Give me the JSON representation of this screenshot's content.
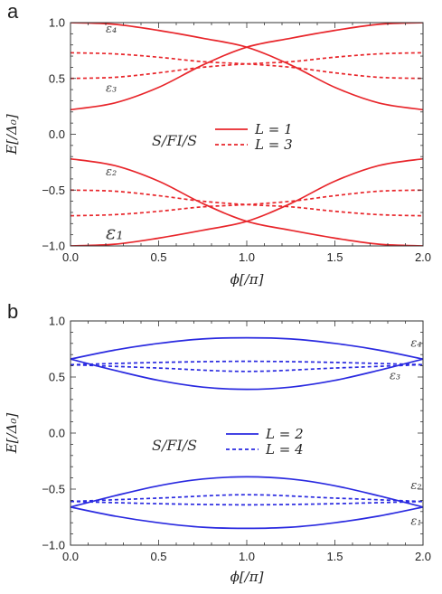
{
  "chart_data": [
    {
      "panel": "a",
      "type": "line",
      "xlabel": "ϕ[/π]",
      "ylabel": "E[/Δ₀]",
      "xlim": [
        0.0,
        2.0
      ],
      "ylim": [
        -1.0,
        1.0
      ],
      "xticks": [
        "0.0",
        "0.5",
        "1.0",
        "1.5",
        "2.0"
      ],
      "yticks": [
        "−1.0",
        "−0.5",
        "0.0",
        "0.5",
        "1.0"
      ],
      "color": "#e8262b",
      "legend": {
        "title": "S/FI/S",
        "placement": "center-right",
        "entries": [
          {
            "label": "L = 1",
            "style": "solid"
          },
          {
            "label": "L = 3",
            "style": "dashed"
          }
        ]
      },
      "annotations": [
        {
          "text": "ε₄",
          "x": 0.2,
          "y": 0.91,
          "size": 13
        },
        {
          "text": "ε₃",
          "x": 0.2,
          "y": 0.38,
          "size": 13
        },
        {
          "text": "ε₂",
          "x": 0.2,
          "y": -0.37,
          "size": 13
        },
        {
          "text": "ε₁",
          "x": 0.2,
          "y": -0.94,
          "size": 21
        }
      ],
      "series": [
        {
          "style": "solid",
          "x": [
            0,
            0.25,
            0.5,
            0.75,
            1.0,
            1.25,
            1.5,
            1.75,
            2.0
          ],
          "y": [
            1.0,
            0.985,
            0.93,
            0.86,
            0.78,
            0.62,
            0.42,
            0.28,
            0.22
          ]
        },
        {
          "style": "solid",
          "x": [
            0,
            0.25,
            0.5,
            0.75,
            1.0,
            1.25,
            1.5,
            1.75,
            2.0
          ],
          "y": [
            0.22,
            0.28,
            0.42,
            0.62,
            0.78,
            0.86,
            0.93,
            0.985,
            1.0
          ]
        },
        {
          "style": "solid",
          "x": [
            0,
            0.25,
            0.5,
            0.75,
            1.0,
            1.25,
            1.5,
            1.75,
            2.0
          ],
          "y": [
            -0.22,
            -0.28,
            -0.42,
            -0.62,
            -0.78,
            -0.86,
            -0.93,
            -0.985,
            -1.0
          ]
        },
        {
          "style": "solid",
          "x": [
            0,
            0.25,
            0.5,
            0.75,
            1.0,
            1.25,
            1.5,
            1.75,
            2.0
          ],
          "y": [
            -1.0,
            -0.985,
            -0.93,
            -0.86,
            -0.78,
            -0.62,
            -0.42,
            -0.28,
            -0.22
          ]
        },
        {
          "style": "dashed",
          "x": [
            0,
            0.25,
            0.5,
            0.75,
            1.0,
            1.25,
            1.5,
            1.75,
            2.0
          ],
          "y": [
            0.73,
            0.72,
            0.69,
            0.65,
            0.63,
            0.6,
            0.55,
            0.51,
            0.5
          ]
        },
        {
          "style": "dashed",
          "x": [
            0,
            0.25,
            0.5,
            0.75,
            1.0,
            1.25,
            1.5,
            1.75,
            2.0
          ],
          "y": [
            0.5,
            0.51,
            0.55,
            0.6,
            0.63,
            0.65,
            0.69,
            0.72,
            0.73
          ]
        },
        {
          "style": "dashed",
          "x": [
            0,
            0.25,
            0.5,
            0.75,
            1.0,
            1.25,
            1.5,
            1.75,
            2.0
          ],
          "y": [
            -0.5,
            -0.51,
            -0.55,
            -0.6,
            -0.63,
            -0.65,
            -0.69,
            -0.72,
            -0.73
          ]
        },
        {
          "style": "dashed",
          "x": [
            0,
            0.25,
            0.5,
            0.75,
            1.0,
            1.25,
            1.5,
            1.75,
            2.0
          ],
          "y": [
            -0.73,
            -0.72,
            -0.69,
            -0.65,
            -0.63,
            -0.6,
            -0.55,
            -0.51,
            -0.5
          ]
        }
      ]
    },
    {
      "panel": "b",
      "type": "line",
      "xlabel": "ϕ[/π]",
      "ylabel": "E[/Δ₀]",
      "xlim": [
        0.0,
        2.0
      ],
      "ylim": [
        -1.0,
        1.0
      ],
      "xticks": [
        "0.0",
        "0.5",
        "1.0",
        "1.5",
        "2.0"
      ],
      "yticks": [
        "−1.0",
        "−0.5",
        "0.0",
        "0.5",
        "1.0"
      ],
      "color": "#2a2ae0",
      "legend": {
        "title": "S/FI/S",
        "placement": "center-right",
        "entries": [
          {
            "label": "L = 2",
            "style": "solid"
          },
          {
            "label": "L = 4",
            "style": "dashed"
          }
        ]
      },
      "annotations": [
        {
          "text": "ε₄",
          "x": 1.93,
          "y": 0.77,
          "size": 13
        },
        {
          "text": "ε₃",
          "x": 1.81,
          "y": 0.48,
          "size": 13
        },
        {
          "text": "ε₂",
          "x": 1.93,
          "y": -0.5,
          "size": 13
        },
        {
          "text": "ε₁",
          "x": 1.93,
          "y": -0.82,
          "size": 13
        }
      ],
      "series": [
        {
          "style": "solid",
          "x": [
            0,
            0.25,
            0.5,
            0.75,
            1.0,
            1.25,
            1.5,
            1.75,
            2.0
          ],
          "y": [
            0.66,
            0.74,
            0.8,
            0.84,
            0.85,
            0.84,
            0.8,
            0.74,
            0.66
          ]
        },
        {
          "style": "solid",
          "x": [
            0,
            0.25,
            0.5,
            0.75,
            1.0,
            1.25,
            1.5,
            1.75,
            2.0
          ],
          "y": [
            0.66,
            0.56,
            0.47,
            0.41,
            0.39,
            0.41,
            0.47,
            0.56,
            0.66
          ]
        },
        {
          "style": "solid",
          "x": [
            0,
            0.25,
            0.5,
            0.75,
            1.0,
            1.25,
            1.5,
            1.75,
            2.0
          ],
          "y": [
            -0.66,
            -0.56,
            -0.47,
            -0.41,
            -0.39,
            -0.41,
            -0.47,
            -0.56,
            -0.66
          ]
        },
        {
          "style": "solid",
          "x": [
            0,
            0.25,
            0.5,
            0.75,
            1.0,
            1.25,
            1.5,
            1.75,
            2.0
          ],
          "y": [
            -0.66,
            -0.74,
            -0.8,
            -0.84,
            -0.85,
            -0.84,
            -0.8,
            -0.74,
            -0.66
          ]
        },
        {
          "style": "dashed",
          "x": [
            0,
            0.5,
            1.0,
            1.5,
            2.0
          ],
          "y": [
            0.61,
            0.63,
            0.64,
            0.63,
            0.61
          ]
        },
        {
          "style": "dashed",
          "x": [
            0,
            0.5,
            1.0,
            1.5,
            2.0
          ],
          "y": [
            0.61,
            0.58,
            0.55,
            0.58,
            0.61
          ]
        },
        {
          "style": "dashed",
          "x": [
            0,
            0.5,
            1.0,
            1.5,
            2.0
          ],
          "y": [
            -0.61,
            -0.58,
            -0.55,
            -0.58,
            -0.61
          ]
        },
        {
          "style": "dashed",
          "x": [
            0,
            0.5,
            1.0,
            1.5,
            2.0
          ],
          "y": [
            -0.61,
            -0.63,
            -0.64,
            -0.63,
            -0.61
          ]
        }
      ]
    }
  ]
}
